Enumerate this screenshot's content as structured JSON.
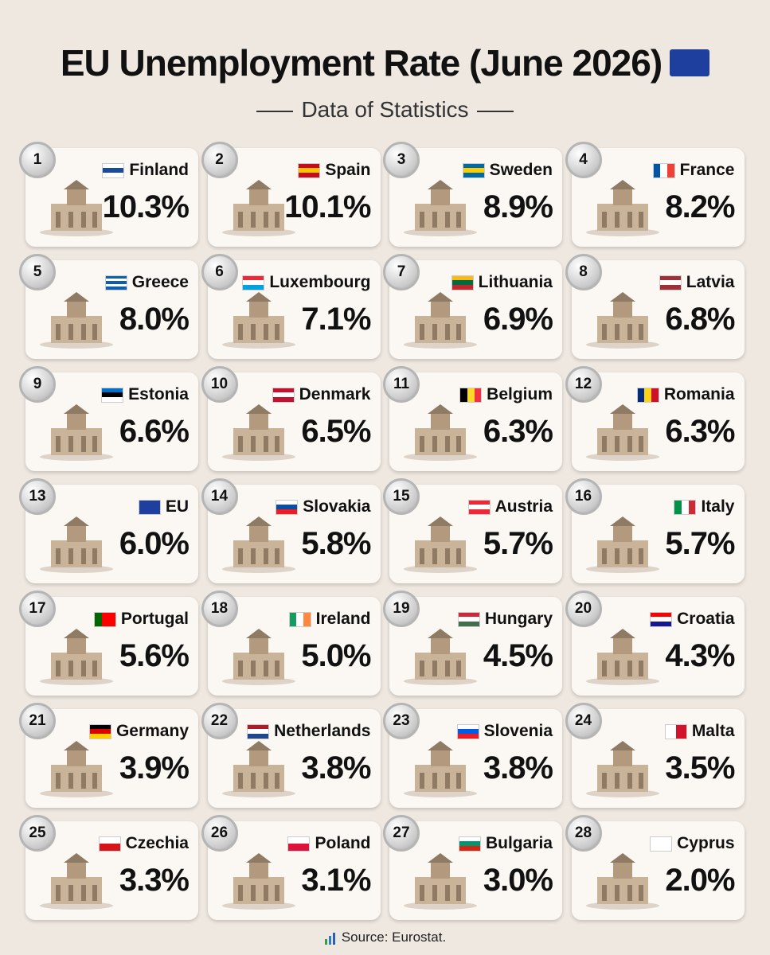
{
  "header": {
    "title": "EU Unemployment Rate (June 2026)",
    "subtitle": "Data of Statistics"
  },
  "cards": [
    {
      "rank": 1,
      "country": "Finland",
      "rate": "10.3%"
    },
    {
      "rank": 2,
      "country": "Spain",
      "rate": "10.1%"
    },
    {
      "rank": 3,
      "country": "Sweden",
      "rate": "8.9%"
    },
    {
      "rank": 4,
      "country": "France",
      "rate": "8.2%"
    },
    {
      "rank": 5,
      "country": "Greece",
      "rate": "8.0%"
    },
    {
      "rank": 6,
      "country": "Luxembourg",
      "rate": "7.1%"
    },
    {
      "rank": 7,
      "country": "Lithuania",
      "rate": "6.9%"
    },
    {
      "rank": 8,
      "country": "Latvia",
      "rate": "6.8%"
    },
    {
      "rank": 9,
      "country": "Estonia",
      "rate": "6.6%"
    },
    {
      "rank": 10,
      "country": "Denmark",
      "rate": "6.5%"
    },
    {
      "rank": 11,
      "country": "Belgium",
      "rate": "6.3%"
    },
    {
      "rank": 12,
      "country": "Romania",
      "rate": "6.3%"
    },
    {
      "rank": 13,
      "country": "EU",
      "rate": "6.0%"
    },
    {
      "rank": 14,
      "country": "Slovakia",
      "rate": "5.8%"
    },
    {
      "rank": 15,
      "country": "Austria",
      "rate": "5.7%"
    },
    {
      "rank": 16,
      "country": "Italy",
      "rate": "5.7%"
    },
    {
      "rank": 17,
      "country": "Portugal",
      "rate": "5.6%"
    },
    {
      "rank": 18,
      "country": "Ireland",
      "rate": "5.0%"
    },
    {
      "rank": 19,
      "country": "Hungary",
      "rate": "4.5%"
    },
    {
      "rank": 20,
      "country": "Croatia",
      "rate": "4.3%"
    },
    {
      "rank": 21,
      "country": "Germany",
      "rate": "3.9%"
    },
    {
      "rank": 22,
      "country": "Netherlands",
      "rate": "3.8%"
    },
    {
      "rank": 23,
      "country": "Slovenia",
      "rate": "3.8%"
    },
    {
      "rank": 24,
      "country": "Malta",
      "rate": "3.5%"
    },
    {
      "rank": 25,
      "country": "Czechia",
      "rate": "3.3%"
    },
    {
      "rank": 26,
      "country": "Poland",
      "rate": "3.1%"
    },
    {
      "rank": 27,
      "country": "Bulgaria",
      "rate": "3.0%"
    },
    {
      "rank": 28,
      "country": "Cyprus",
      "rate": "2.0%"
    }
  ],
  "footer": {
    "source": "Source: Eurostat."
  }
}
